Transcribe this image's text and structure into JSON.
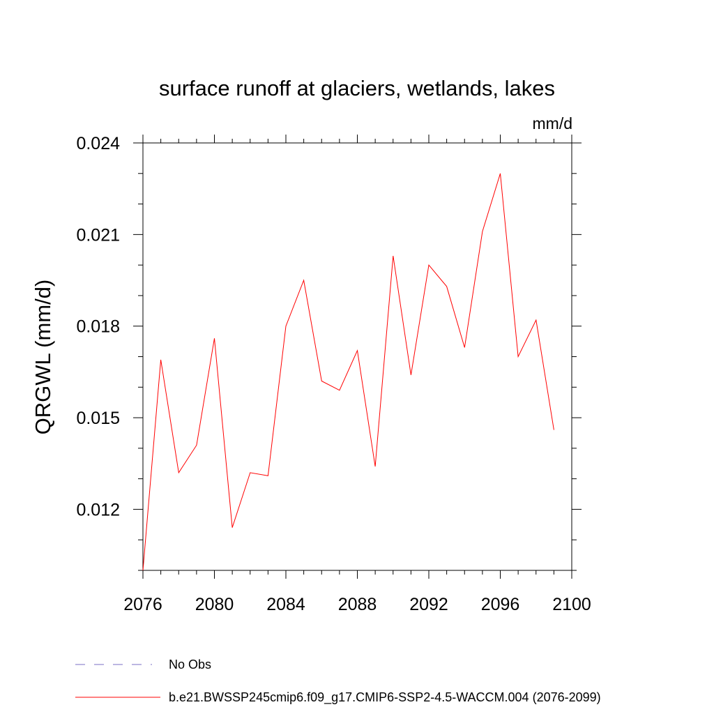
{
  "chart_data": {
    "type": "line",
    "title": "surface runoff at glaciers, wetlands, lakes",
    "units_label": "mm/d",
    "ylabel": "QRGWL  (mm/d)",
    "xlabel": "",
    "xlim": [
      2076,
      2100
    ],
    "ylim": [
      0.01,
      0.024
    ],
    "x_ticks": [
      2076,
      2080,
      2084,
      2088,
      2092,
      2096,
      2100
    ],
    "x_tick_labels": [
      "2076",
      "2080",
      "2084",
      "2088",
      "2092",
      "2096",
      "2100"
    ],
    "y_ticks": [
      0.012,
      0.015,
      0.018,
      0.021,
      0.024
    ],
    "y_tick_labels": [
      "0.012",
      "0.015",
      "0.018",
      "0.021",
      "0.024"
    ],
    "grid": false,
    "legend_position": "bottom",
    "series": [
      {
        "name": "b.e21.BWSSP245cmip6.f09_g17.CMIP6-SSP2-4.5-WACCM.004 (2076-2099)",
        "color": "#ff0000",
        "dash": "solid",
        "x": [
          2076,
          2077,
          2078,
          2079,
          2080,
          2081,
          2082,
          2083,
          2084,
          2085,
          2086,
          2087,
          2088,
          2089,
          2090,
          2091,
          2092,
          2093,
          2094,
          2095,
          2096,
          2097,
          2098,
          2099
        ],
        "y": [
          0.01,
          0.0169,
          0.0132,
          0.0141,
          0.0176,
          0.0114,
          0.0132,
          0.0131,
          0.018,
          0.0195,
          0.0162,
          0.0159,
          0.0172,
          0.0134,
          0.0203,
          0.0164,
          0.02,
          0.0193,
          0.0173,
          0.0211,
          0.023,
          0.017,
          0.0182,
          0.0146
        ]
      }
    ],
    "legend": [
      {
        "label": "No Obs",
        "color": "#7a6fc4",
        "dash": "dashed"
      },
      {
        "label": "b.e21.BWSSP245cmip6.f09_g17.CMIP6-SSP2-4.5-WACCM.004 (2076-2099)",
        "color": "#ff0000",
        "dash": "solid"
      }
    ]
  }
}
